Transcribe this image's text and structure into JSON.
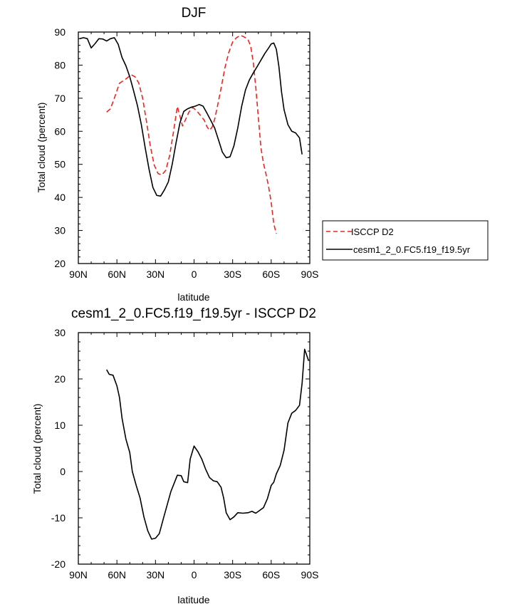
{
  "chart_data": [
    {
      "type": "line",
      "title": "DJF",
      "xlabel": "latitude",
      "ylabel": "Total cloud (percent)",
      "xlim": [
        -90,
        90
      ],
      "ylim": [
        20,
        90
      ],
      "xticks": [
        -90,
        -60,
        -30,
        0,
        30,
        60,
        90
      ],
      "xticklabels": [
        "90N",
        "60N",
        "30N",
        "0",
        "30S",
        "60S",
        "90S"
      ],
      "yticks": [
        20,
        30,
        40,
        50,
        60,
        70,
        80,
        90
      ],
      "yticklabels": [
        "20",
        "30",
        "40",
        "50",
        "60",
        "70",
        "80",
        "90"
      ],
      "legend_position": "outside-right",
      "series": [
        {
          "name": "ISCCP D2",
          "color": "#e8281e",
          "dash": "dashed",
          "points": [
            [
              -68,
              65.8
            ],
            [
              -65,
              66.8
            ],
            [
              -62,
              70
            ],
            [
              -58,
              74.5
            ],
            [
              -55,
              75.3
            ],
            [
              -52,
              76.1
            ],
            [
              -49,
              77.1
            ],
            [
              -46,
              76.5
            ],
            [
              -43,
              74.6
            ],
            [
              -40,
              70
            ],
            [
              -37,
              63
            ],
            [
              -34,
              55.5
            ],
            [
              -31,
              49.8
            ],
            [
              -28,
              47.2
            ],
            [
              -25,
              46.8
            ],
            [
              -22,
              48.2
            ],
            [
              -19,
              52.6
            ],
            [
              -16,
              59.8
            ],
            [
              -13,
              67.5
            ],
            [
              -11,
              64.6
            ],
            [
              -9,
              61.6
            ],
            [
              -7,
              63.2
            ],
            [
              -4,
              65.8
            ],
            [
              -1,
              67.2
            ],
            [
              2,
              66.2
            ],
            [
              5,
              64.8
            ],
            [
              8,
              63.3
            ],
            [
              10,
              61.4
            ],
            [
              12,
              60.3
            ],
            [
              14,
              61.2
            ],
            [
              16,
              63.6
            ],
            [
              18,
              67.2
            ],
            [
              21,
              73
            ],
            [
              24,
              79.2
            ],
            [
              27,
              83.8
            ],
            [
              30,
              87
            ],
            [
              33,
              88.3
            ],
            [
              36,
              89
            ],
            [
              38,
              88.7
            ],
            [
              40,
              88.3
            ],
            [
              42,
              87.7
            ],
            [
              44,
              85.8
            ],
            [
              46,
              81
            ],
            [
              48,
              73.3
            ],
            [
              50,
              64.2
            ],
            [
              52,
              55
            ],
            [
              54,
              50.3
            ],
            [
              56,
              47
            ],
            [
              58,
              43.2
            ],
            [
              60,
              38.5
            ],
            [
              62,
              32
            ],
            [
              64,
              29
            ]
          ]
        },
        {
          "name": "cesm1_2_0.FC5.f19_f19.5yr",
          "color": "#000000",
          "dash": "solid",
          "points": [
            [
              -89,
              88
            ],
            [
              -86,
              88.3
            ],
            [
              -83,
              88
            ],
            [
              -80,
              85.2
            ],
            [
              -77,
              86.5
            ],
            [
              -74,
              88
            ],
            [
              -71,
              87.9
            ],
            [
              -68,
              87.3
            ],
            [
              -65,
              88
            ],
            [
              -62,
              88.3
            ],
            [
              -59,
              86.3
            ],
            [
              -56,
              82.3
            ],
            [
              -53,
              79.8
            ],
            [
              -50,
              76.5
            ],
            [
              -47,
              72.2
            ],
            [
              -44,
              67.7
            ],
            [
              -41,
              62
            ],
            [
              -38,
              55
            ],
            [
              -35,
              48.5
            ],
            [
              -32,
              43
            ],
            [
              -29,
              40.6
            ],
            [
              -26,
              40.4
            ],
            [
              -23,
              42.3
            ],
            [
              -20,
              44.7
            ],
            [
              -17,
              50
            ],
            [
              -14,
              56.5
            ],
            [
              -11,
              62.5
            ],
            [
              -8,
              66
            ],
            [
              -5,
              66.8
            ],
            [
              -2,
              67.3
            ],
            [
              1,
              67.6
            ],
            [
              4,
              68.1
            ],
            [
              7,
              67.6
            ],
            [
              10,
              65.5
            ],
            [
              13,
              63.3
            ],
            [
              16,
              61
            ],
            [
              19,
              57.4
            ],
            [
              22,
              53.7
            ],
            [
              25,
              52
            ],
            [
              28,
              52.3
            ],
            [
              31,
              55.6
            ],
            [
              34,
              61
            ],
            [
              37,
              67.5
            ],
            [
              40,
              72.5
            ],
            [
              43,
              75.5
            ],
            [
              46,
              77.6
            ],
            [
              49,
              79.5
            ],
            [
              52,
              81.5
            ],
            [
              55,
              83.5
            ],
            [
              58,
              85.2
            ],
            [
              60,
              86.4
            ],
            [
              62,
              86.7
            ],
            [
              64,
              84.8
            ],
            [
              66,
              79.5
            ],
            [
              68,
              72
            ],
            [
              70,
              66.5
            ],
            [
              73,
              62
            ],
            [
              76,
              60
            ],
            [
              79,
              59.5
            ],
            [
              82,
              58
            ],
            [
              84,
              53
            ]
          ]
        }
      ]
    },
    {
      "type": "line",
      "title": "cesm1_2_0.FC5.f19_f19.5yr - ISCCP D2",
      "xlabel": "latitude",
      "ylabel": "Total cloud (percent)",
      "xlim": [
        -90,
        90
      ],
      "ylim": [
        -20,
        30
      ],
      "xticks": [
        -90,
        -60,
        -30,
        0,
        30,
        60,
        90
      ],
      "xticklabels": [
        "90N",
        "60N",
        "30N",
        "0",
        "30S",
        "60S",
        "90S"
      ],
      "yticks": [
        -20,
        -10,
        0,
        10,
        20,
        30
      ],
      "yticklabels": [
        "-20",
        "-10",
        "0",
        "10",
        "20",
        "30"
      ],
      "series": [
        {
          "color": "#000000",
          "dash": "solid",
          "points": [
            [
              -68,
              22
            ],
            [
              -66,
              21
            ],
            [
              -63,
              20.8
            ],
            [
              -60,
              18.5
            ],
            [
              -58,
              16
            ],
            [
              -56,
              11.5
            ],
            [
              -53,
              7
            ],
            [
              -50,
              4.1
            ],
            [
              -48,
              0
            ],
            [
              -45,
              -3
            ],
            [
              -42,
              -5.7
            ],
            [
              -39,
              -9.8
            ],
            [
              -36,
              -12.8
            ],
            [
              -33,
              -14.6
            ],
            [
              -30,
              -14.4
            ],
            [
              -27,
              -13.4
            ],
            [
              -24,
              -10.3
            ],
            [
              -21,
              -7.3
            ],
            [
              -18,
              -4.3
            ],
            [
              -15,
              -2.2
            ],
            [
              -13,
              -0.8
            ],
            [
              -10,
              -0.9
            ],
            [
              -8,
              -2.2
            ],
            [
              -5,
              -2.4
            ],
            [
              -3,
              2.7
            ],
            [
              0,
              5.5
            ],
            [
              3,
              4.3
            ],
            [
              6,
              2.7
            ],
            [
              9,
              0.5
            ],
            [
              12,
              -1.3
            ],
            [
              15,
              -2
            ],
            [
              18,
              -2.2
            ],
            [
              21,
              -3.4
            ],
            [
              23,
              -5.7
            ],
            [
              25,
              -8.9
            ],
            [
              28,
              -10.4
            ],
            [
              31,
              -9.8
            ],
            [
              34,
              -8.9
            ],
            [
              38,
              -9
            ],
            [
              42,
              -8.9
            ],
            [
              45,
              -8.6
            ],
            [
              48,
              -9
            ],
            [
              51,
              -8.4
            ],
            [
              54,
              -7.8
            ],
            [
              57,
              -5.9
            ],
            [
              60,
              -3
            ],
            [
              62,
              -2.3
            ],
            [
              64,
              -0.5
            ],
            [
              67,
              1.3
            ],
            [
              70,
              4.6
            ],
            [
              73,
              10.5
            ],
            [
              76,
              12.6
            ],
            [
              79,
              13.2
            ],
            [
              82,
              14.3
            ],
            [
              84,
              19
            ],
            [
              86,
              26.4
            ],
            [
              89,
              24
            ]
          ]
        }
      ]
    }
  ]
}
